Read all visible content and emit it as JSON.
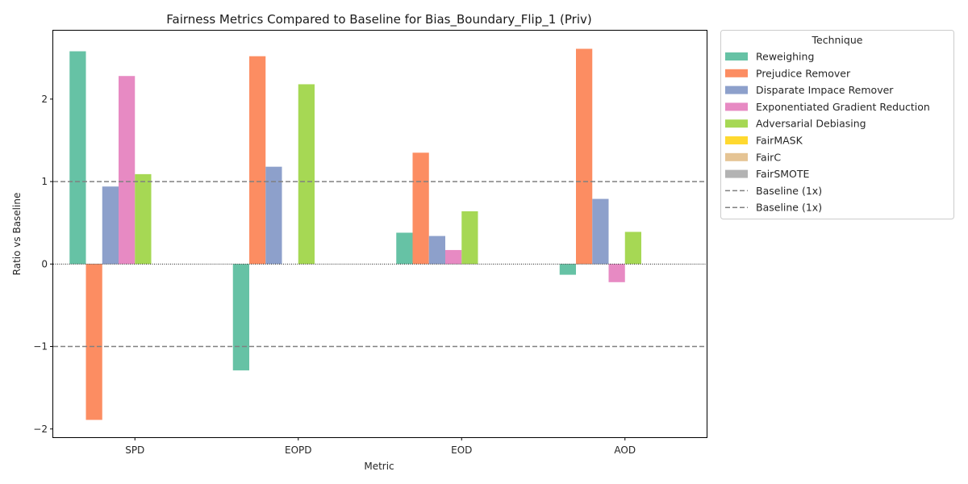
{
  "chart_data": {
    "type": "bar",
    "title": "Fairness Metrics Compared to Baseline for Bias_Boundary_Flip_1 (Priv)",
    "xlabel": "Metric",
    "ylabel": "Ratio vs Baseline",
    "ylim": [
      -2.1,
      2.83
    ],
    "yticks": [
      -2,
      -1,
      0,
      1,
      2
    ],
    "ytick_labels": [
      "−2",
      "−1",
      "0",
      "1",
      "2"
    ],
    "categories": [
      "SPD",
      "EOPD",
      "EOD",
      "AOD"
    ],
    "grid": false,
    "legend_placement": "outside-right",
    "legend_title": "Technique",
    "series": [
      {
        "name": "Reweighing",
        "color": "#66c2a5",
        "values": [
          2.58,
          -1.29,
          0.38,
          -0.13
        ]
      },
      {
        "name": "Prejudice Remover",
        "color": "#fc8d62",
        "values": [
          -1.89,
          2.52,
          1.35,
          2.61
        ]
      },
      {
        "name": "Disparate Impace Remover",
        "color": "#8da0cb",
        "values": [
          0.94,
          1.18,
          0.34,
          0.79
        ]
      },
      {
        "name": "Exponentiated Gradient Reduction",
        "color": "#e78ac3",
        "values": [
          2.28,
          0,
          0.17,
          -0.22
        ]
      },
      {
        "name": "Adversarial Debiasing",
        "color": "#a6d854",
        "values": [
          1.09,
          2.18,
          0.64,
          0.39
        ]
      },
      {
        "name": "FairMASK",
        "color": "#ffd92f",
        "values": [
          0,
          0,
          0,
          0
        ]
      },
      {
        "name": "FairC",
        "color": "#e5c494",
        "values": [
          0,
          0,
          0,
          0
        ]
      },
      {
        "name": "FairSMOTE",
        "color": "#b3b3b3",
        "values": [
          0,
          0,
          0,
          0
        ]
      }
    ],
    "reference_lines": [
      {
        "name": "Baseline (1x)",
        "y": 1,
        "style": "dashed",
        "color": "#808080"
      },
      {
        "name": "Baseline (1x)",
        "y": -1,
        "style": "dashed",
        "color": "#808080"
      }
    ],
    "zero_line": {
      "y": 0,
      "style": "dotted",
      "color": "#000000"
    }
  }
}
